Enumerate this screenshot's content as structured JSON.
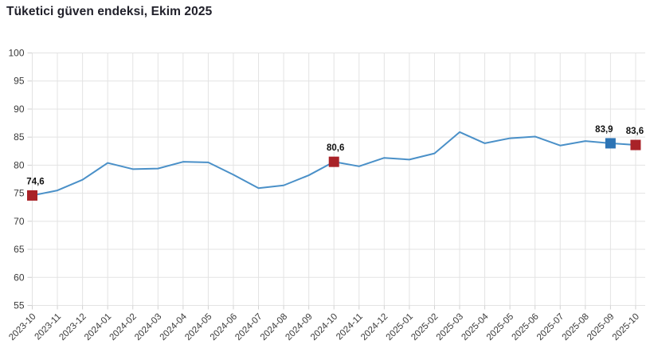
{
  "title": "Tüketici güven endeksi, Ekim 2025",
  "chart_data": {
    "type": "line",
    "title": "Tüketici güven endeksi, Ekim 2025",
    "x": [
      "2023-10",
      "2023-11",
      "2023-12",
      "2024-01",
      "2024-02",
      "2024-03",
      "2024-04",
      "2024-05",
      "2024-06",
      "2024-07",
      "2024-08",
      "2024-09",
      "2024-10",
      "2024-11",
      "2024-12",
      "2025-01",
      "2025-02",
      "2025-03",
      "2025-04",
      "2025-05",
      "2025-06",
      "2025-07",
      "2025-08",
      "2025-09",
      "2025-10"
    ],
    "values": [
      74.6,
      75.5,
      77.4,
      80.4,
      79.3,
      79.4,
      80.6,
      80.5,
      78.3,
      75.9,
      76.4,
      78.2,
      80.6,
      79.8,
      81.3,
      81.0,
      82.1,
      85.9,
      83.9,
      84.8,
      85.1,
      83.5,
      84.3,
      83.9,
      83.6
    ],
    "ylim": [
      55,
      100
    ],
    "ytick_step": 5,
    "yticks": [
      55,
      60,
      65,
      70,
      75,
      80,
      85,
      90,
      95,
      100
    ],
    "grid": true,
    "legend": "none",
    "colors": {
      "line": "#4a90c8",
      "marker_red": "#a92228",
      "marker_blue": "#2d74b5",
      "gridline": "#e3e3e3",
      "tick": "#d0d0d0",
      "axis_text": "#3a3a3a",
      "annotation_text": "#111111"
    },
    "annotations": [
      {
        "x": "2023-10",
        "label": "74,6",
        "marker": "marker_red",
        "dx": 4
      },
      {
        "x": "2024-10",
        "label": "80,6",
        "marker": "marker_red",
        "dx": 2
      },
      {
        "x": "2025-09",
        "label": "83,9",
        "marker": "marker_blue",
        "dx": -8
      },
      {
        "x": "2025-10",
        "label": "83,6",
        "marker": "marker_red",
        "dx": -1
      }
    ]
  }
}
